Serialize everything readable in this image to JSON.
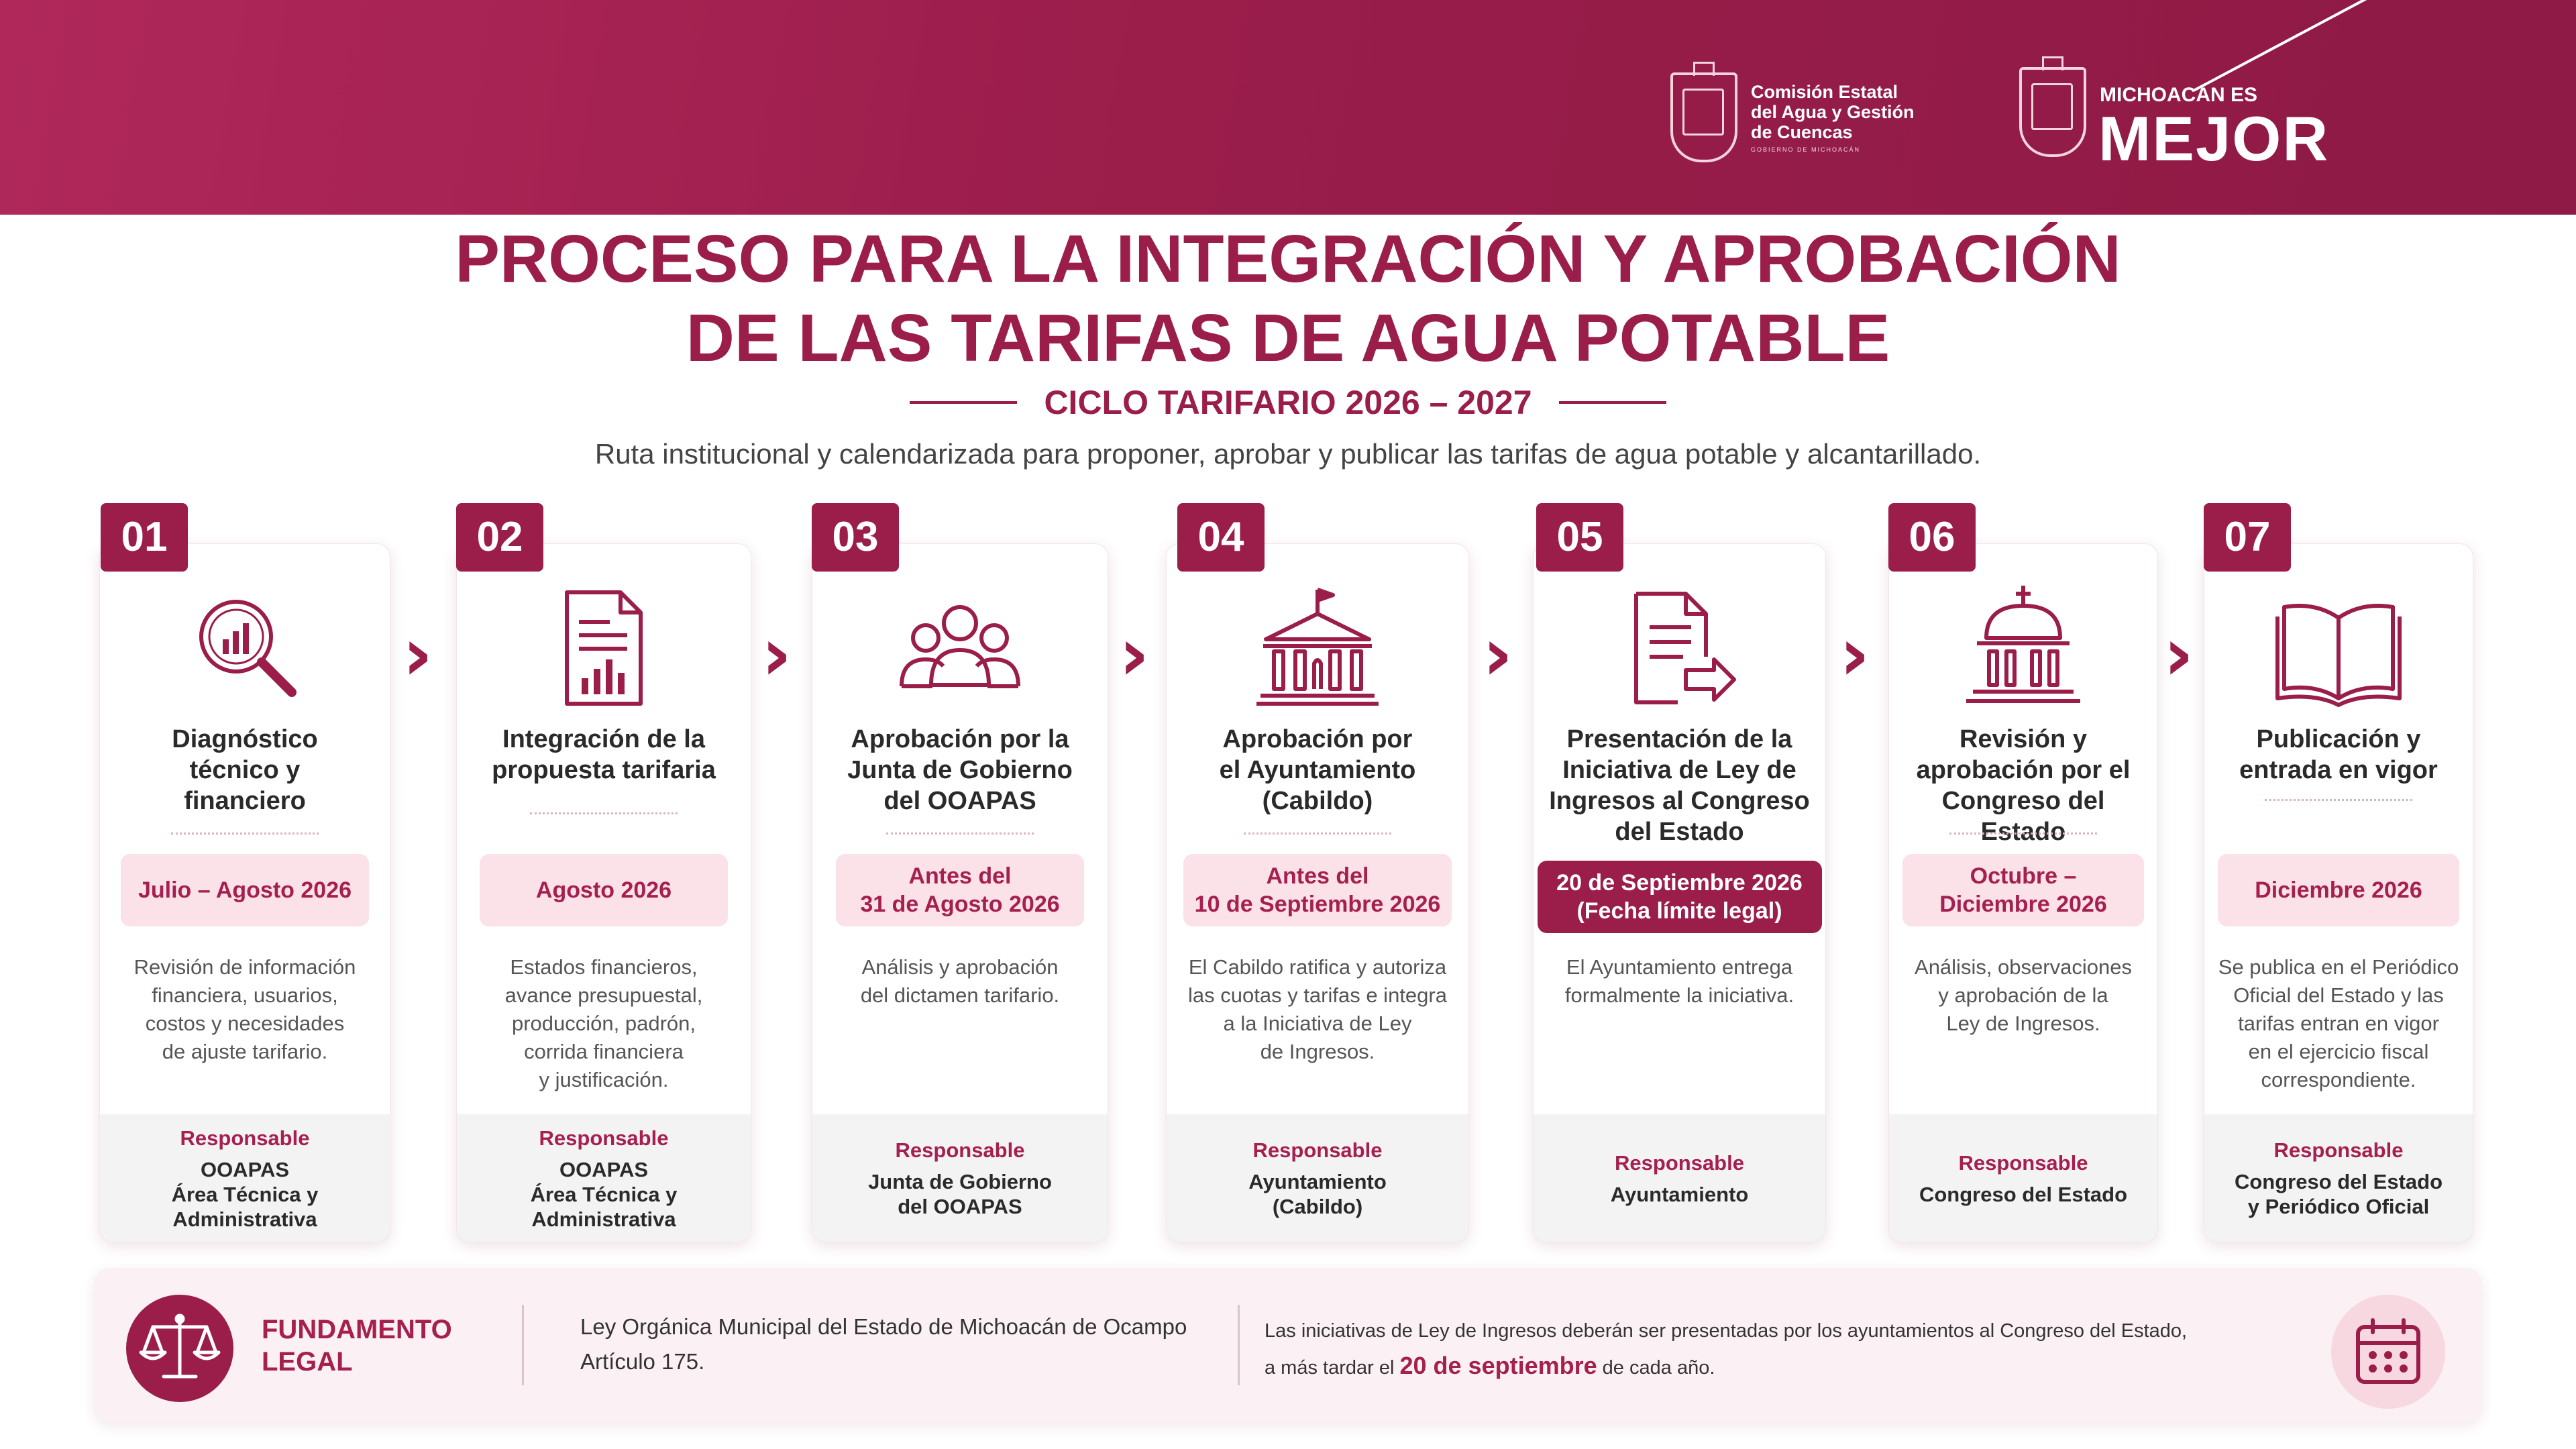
{
  "header": {
    "org_logo_text": "Comisión Estatal\ndel Agua y Gestión\nde Cuencas",
    "org_logo_sub": "GOBIERNO DE MICHOACÁN",
    "brand_es": "MICHOACÁN ES",
    "brand_mejor": "MEJOR"
  },
  "title": {
    "line1": "PROCESO PARA LA INTEGRACIÓN Y APROBACIÓN",
    "line2": "DE LAS TARIFAS DE AGUA POTABLE",
    "cycle": "CICLO TARIFARIO 2026 – 2027",
    "subtitle": "Ruta institucional y calendarizada para proponer, aprobar y publicar las tarifas de agua potable y alcantarillado."
  },
  "colors": {
    "primary": "#9a1d4a",
    "date_bg": "#fbe1e8",
    "resp_bg": "#f3f3f4"
  },
  "responsable_label": "Responsable",
  "steps": [
    {
      "num": "01",
      "icon": "magnifier-chart-icon",
      "title": "Diagnóstico\ntécnico y\nfinanciero",
      "date": "Julio – Agosto 2026",
      "desc": "Revisión de información\nfinanciera, usuarios,\ncostos y necesidades\nde ajuste tarifario.",
      "resp": "OOAPAS\nÁrea Técnica y\nAdministrativa"
    },
    {
      "num": "02",
      "icon": "document-chart-icon",
      "title": "Integración de la\npropuesta tarifaria",
      "date": "Agosto 2026",
      "desc": "Estados financieros,\navance presupuestal,\nproducción, padrón,\ncorrida financiera\ny justificación.",
      "resp": "OOAPAS\nÁrea Técnica y\nAdministrativa"
    },
    {
      "num": "03",
      "icon": "group-icon",
      "title": "Aprobación por la\nJunta de Gobierno\ndel OOAPAS",
      "date": "Antes del\n31 de Agosto 2026",
      "desc": "Análisis y aprobación\ndel dictamen tarifario.",
      "resp": "Junta de Gobierno\ndel OOAPAS"
    },
    {
      "num": "04",
      "icon": "town-hall-icon",
      "title": "Aprobación por\nel Ayuntamiento\n(Cabildo)",
      "date": "Antes del\n10 de Septiembre 2026",
      "desc": "El Cabildo ratifica y autoriza\nlas cuotas y tarifas e integra\na la Iniciativa de Ley\nde Ingresos.",
      "resp": "Ayuntamiento\n(Cabildo)"
    },
    {
      "num": "05",
      "icon": "document-send-icon",
      "title": "Presentación de la\nIniciativa de Ley de\nIngresos al Congreso\ndel Estado",
      "date": "20 de Septiembre 2026\n(Fecha límite legal)",
      "desc": "El Ayuntamiento entrega\nformalmente la iniciativa.",
      "resp": "Ayuntamiento"
    },
    {
      "num": "06",
      "icon": "capitol-icon",
      "title": "Revisión y\naprobación por el\nCongreso del Estado",
      "date": "Octubre –\nDiciembre 2026",
      "desc": "Análisis, observaciones\ny aprobación de la\nLey de Ingresos.",
      "resp": "Congreso del Estado"
    },
    {
      "num": "07",
      "icon": "open-book-icon",
      "title": "Publicación y\nentrada en vigor",
      "date": "Diciembre 2026",
      "desc": "Se publica en el Periódico\nOficial del Estado y las\ntarifas entran en vigor\nen el ejercicio fiscal\ncorrespondiente.",
      "resp": "Congreso del Estado\ny Periódico Oficial"
    }
  ],
  "legal": {
    "label": "FUNDAMENTO\nLEGAL",
    "law_line1": "Ley Orgánica Municipal del Estado de Michoacán de Ocampo",
    "law_line2": "Artículo 175.",
    "note_line1": "Las iniciativas de Ley de Ingresos deberán ser presentadas por los ayuntamientos al Congreso del Estado,",
    "note_pre": "a más tardar el ",
    "note_date": "20 de septiembre",
    "note_post": " de cada año."
  }
}
